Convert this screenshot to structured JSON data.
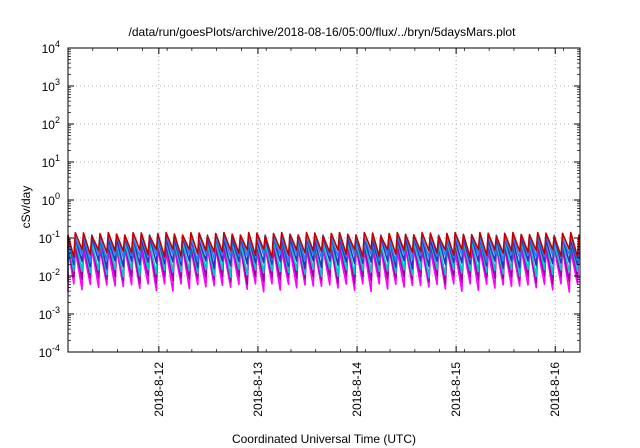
{
  "chart_data": {
    "type": "line",
    "title": "/data/run/goesPlots/archive/2018-08-16/05:00/flux/../bryn/5daysMars.plot",
    "xlabel": "Coordinated Universal Time (UTC)",
    "ylabel": "cSv/day",
    "yscale": "log",
    "ylim": [
      0.0001,
      10000
    ],
    "xlim": [
      "2018-08-11 02:00",
      "2018-08-16 06:00"
    ],
    "grid": true,
    "y_ticks": [
      {
        "base": "10",
        "exp": "-4",
        "value": 0.0001
      },
      {
        "base": "10",
        "exp": "-3",
        "value": 0.001
      },
      {
        "base": "10",
        "exp": "-2",
        "value": 0.01
      },
      {
        "base": "10",
        "exp": "-1",
        "value": 0.1
      },
      {
        "base": "10",
        "exp": "0",
        "value": 1
      },
      {
        "base": "10",
        "exp": "1",
        "value": 10
      },
      {
        "base": "10",
        "exp": "2",
        "value": 100
      },
      {
        "base": "10",
        "exp": "3",
        "value": 1000
      },
      {
        "base": "10",
        "exp": "4",
        "value": 10000
      }
    ],
    "x_ticks": [
      {
        "label": "2018-8-12",
        "date": "2018-08-12 00:00"
      },
      {
        "label": "2018-8-13",
        "date": "2018-08-13 00:00"
      },
      {
        "label": "2018-8-14",
        "date": "2018-08-14 00:00"
      },
      {
        "label": "2018-8-15",
        "date": "2018-08-15 00:00"
      },
      {
        "label": "2018-8-16",
        "date": "2018-08-16 00:00"
      }
    ],
    "pattern": {
      "sawtooth_period_hours": 2.0,
      "note_visible": "dose rate rises sharply then decays each period"
    },
    "series": [
      {
        "color": "#ff00ff",
        "peak": 0.05,
        "trough": 0.005
      },
      {
        "color": "#a000a0",
        "peak": 0.065,
        "trough": 0.008
      },
      {
        "color": "#00c8c8",
        "peak": 0.08,
        "trough": 0.012
      },
      {
        "color": "#3030c0",
        "peak": 0.095,
        "trough": 0.02
      },
      {
        "color": "#2080ff",
        "peak": 0.11,
        "trough": 0.03
      },
      {
        "color": "#c00000",
        "peak": 0.125,
        "trough": 0.04
      }
    ]
  }
}
